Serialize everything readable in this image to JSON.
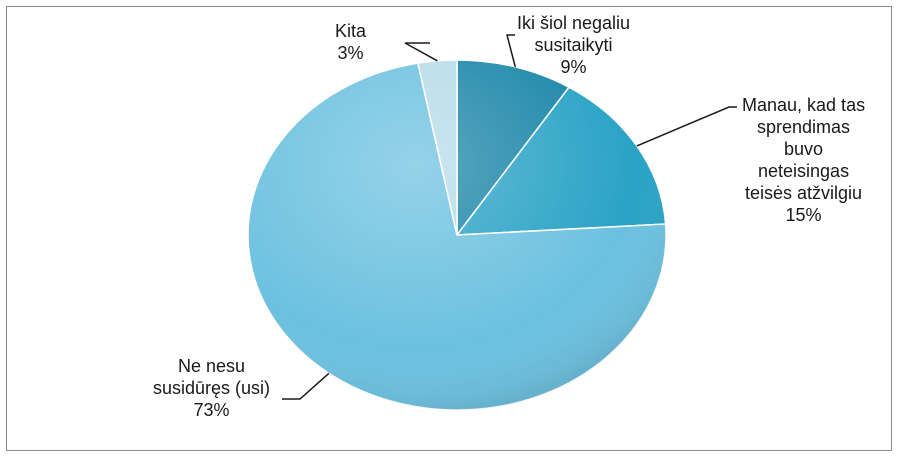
{
  "chart_data": {
    "type": "pie",
    "title": "",
    "slices": [
      {
        "label": "Iki šiol negaliu\nsusitaikyti",
        "percent_label": "9%",
        "value": 9,
        "color": "#1b86a8"
      },
      {
        "label": "Manau, kad tas\nsprendimas\nbuvo\nneteisingas\nteisės atžvilgiu",
        "percent_label": "15%",
        "value": 15,
        "color": "#2aa3c6"
      },
      {
        "label": "Ne nesu\nsusidūręs (usi)",
        "percent_label": "73%",
        "value": 73,
        "color": "#6cc1e0"
      },
      {
        "label": "Kita",
        "percent_label": "3%",
        "value": 3,
        "color": "#b6dbe8"
      }
    ],
    "start_angle_deg": 0,
    "direction": "clockwise",
    "legend": "none",
    "data_labels": "outside with leader lines"
  }
}
